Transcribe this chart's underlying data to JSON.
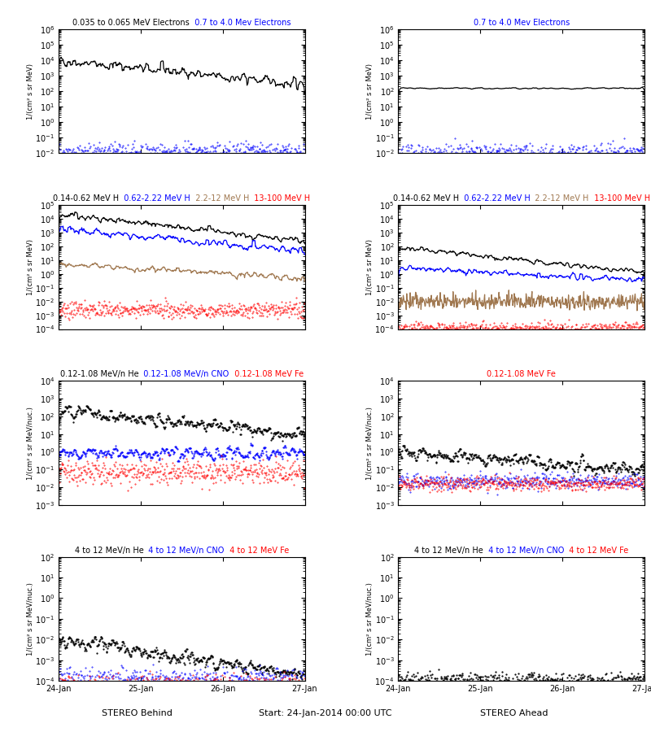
{
  "background": "#ffffff",
  "rows_left": [
    {
      "titles": [
        {
          "text": "0.035 to 0.065 MeV Electrons",
          "color": "black"
        },
        {
          "text": "  0.7 to 4.0 Mev Electrons",
          "color": "blue"
        }
      ],
      "ylabel": "1/(cm² s sr MeV)",
      "ylim_exp": [
        -2,
        6
      ]
    },
    {
      "titles": [
        {
          "text": "0.14-0.62 MeV H",
          "color": "black"
        },
        {
          "text": "  0.62-2.22 MeV H",
          "color": "blue"
        },
        {
          "text": "  2.2-12 MeV H",
          "color": "#a07850"
        },
        {
          "text": "  13-100 MeV H",
          "color": "red"
        }
      ],
      "ylabel": "1/(cm² s sr MeV)",
      "ylim_exp": [
        -4,
        5
      ]
    },
    {
      "titles": [
        {
          "text": "0.12-1.08 MeV/n He",
          "color": "black"
        },
        {
          "text": "  0.12-1.08 MeV/n CNO",
          "color": "blue"
        },
        {
          "text": "  0.12-1.08 MeV Fe",
          "color": "red"
        }
      ],
      "ylabel": "1/(cm² s sr MeV/nuc.)",
      "ylim_exp": [
        -3,
        4
      ]
    },
    {
      "titles": [
        {
          "text": "4 to 12 MeV/n He",
          "color": "black"
        },
        {
          "text": "  4 to 12 MeV/n CNO",
          "color": "blue"
        },
        {
          "text": "  4 to 12 MeV Fe",
          "color": "red"
        }
      ],
      "ylabel": "1/(cm² s sr MeV/nuc.)",
      "ylim_exp": [
        -4,
        2
      ]
    }
  ],
  "rows_right": [
    {
      "titles": [
        {
          "text": "0.7 to 4.0 Mev Electrons",
          "color": "blue"
        }
      ],
      "ylabel": "1/(cm² s sr MeV)",
      "ylim_exp": [
        -2,
        6
      ]
    },
    {
      "titles": [
        {
          "text": "0.14-0.62 MeV H",
          "color": "black"
        },
        {
          "text": "  0.62-2.22 MeV H",
          "color": "blue"
        },
        {
          "text": "  2.2-12 MeV H",
          "color": "#a07850"
        },
        {
          "text": "  13-100 MeV H",
          "color": "red"
        }
      ],
      "ylabel": "1/(cm² s sr MeV)",
      "ylim_exp": [
        -4,
        5
      ]
    },
    {
      "titles": [
        {
          "text": "0.12-1.08 MeV Fe",
          "color": "red"
        }
      ],
      "ylabel": "1/(cm² s sr MeV/nuc.)",
      "ylim_exp": [
        -3,
        4
      ]
    },
    {
      "titles": [
        {
          "text": "4 to 12 MeV/n He",
          "color": "black"
        },
        {
          "text": "  4 to 12 MeV/n CNO",
          "color": "blue"
        },
        {
          "text": "  4 to 12 MeV Fe",
          "color": "red"
        }
      ],
      "ylabel": "1/(cm² s sr MeV/nuc.)",
      "ylim_exp": [
        -4,
        2
      ]
    }
  ],
  "xtick_labels": [
    "24-Jan",
    "25-Jan",
    "26-Jan",
    "27-Jan"
  ],
  "label_left": "STEREO Behind",
  "label_center": "Start: 24-Jan-2014 00:00 UTC",
  "label_right": "STEREO Ahead",
  "n_points": 500,
  "time_days": 3.0,
  "seed": 42
}
